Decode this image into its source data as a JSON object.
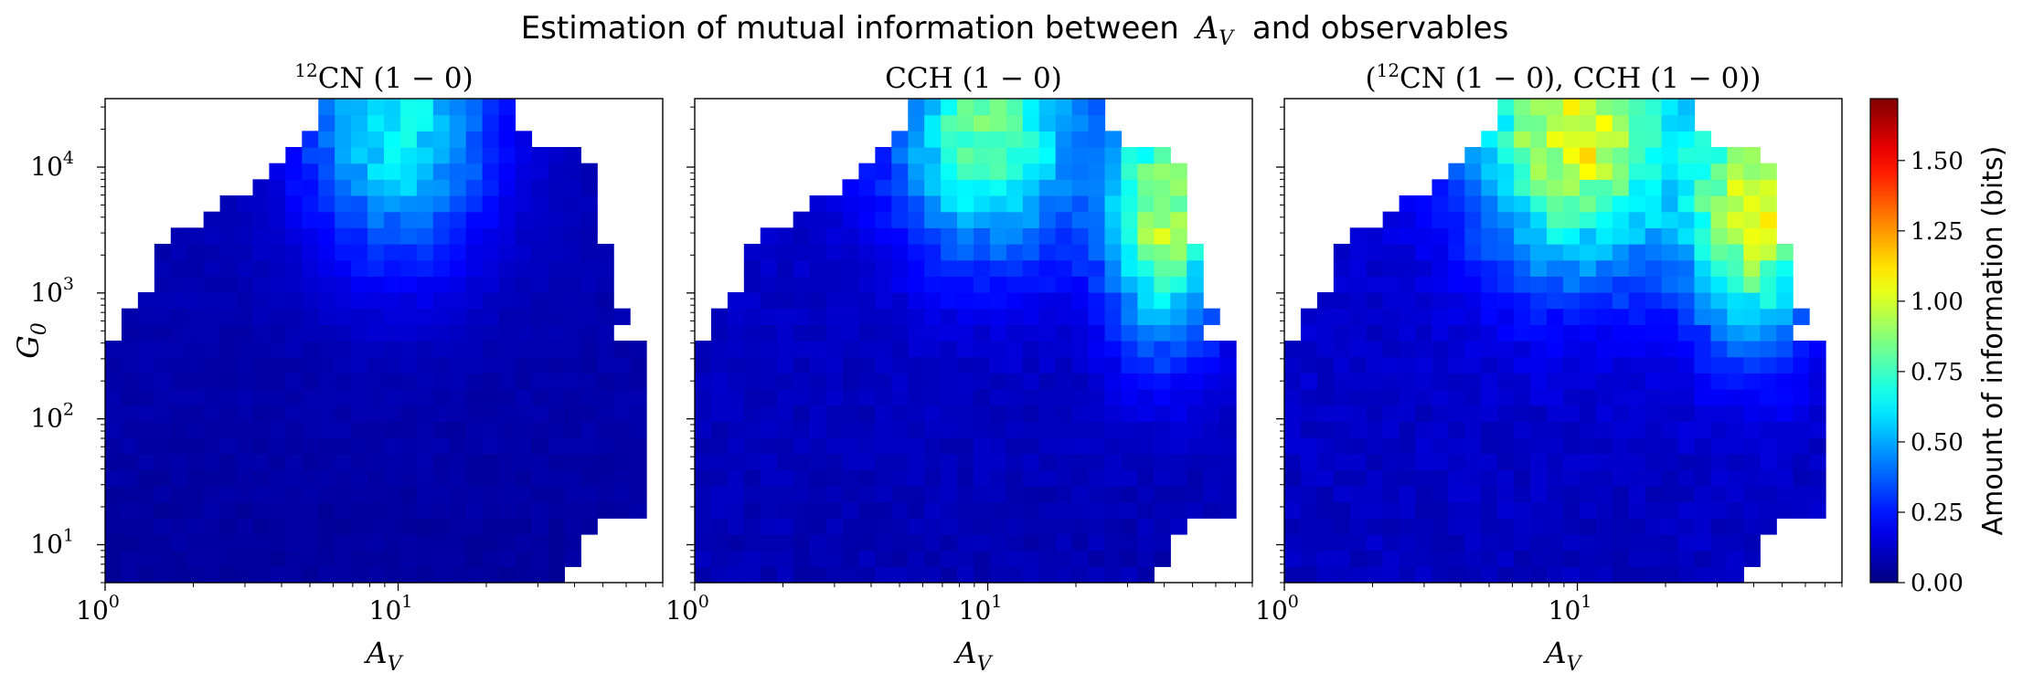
{
  "figure": {
    "suptitle_text": "Estimation of mutual information between",
    "suptitle_var": "A",
    "suptitle_var_sub": "V",
    "suptitle_suffix": "and observables"
  },
  "colorbar": {
    "label": "Amount of information (bits)",
    "colormap": "jet",
    "vmin": 0.0,
    "vmax": 1.72,
    "ticks": [
      "0.00",
      "0.25",
      "0.50",
      "0.75",
      "1.00",
      "1.25",
      "1.50"
    ],
    "tick_values": [
      0.0,
      0.25,
      0.5,
      0.75,
      1.0,
      1.25,
      1.5
    ]
  },
  "chart_data": [
    {
      "type": "heatmap",
      "title_sup": "12",
      "title_main": "CN (1 − 0)",
      "xlabel": "A",
      "xlabel_sub": "V",
      "ylabel": "G",
      "ylabel_sub": "0",
      "xscale": "log",
      "yscale": "log",
      "xlim": [
        1,
        80
      ],
      "ylim": [
        5,
        35000
      ],
      "xtick_labels": [
        "10",
        "10"
      ],
      "xtick_exponents": [
        "0",
        "1"
      ],
      "ytick_labels": [
        "10",
        "10",
        "10",
        "10"
      ],
      "ytick_exponents": [
        "1",
        "2",
        "3",
        "4"
      ],
      "peaks": [
        {
          "x": 10,
          "y": 23000,
          "value": 0.55,
          "sx": 0.22,
          "sy": 0.2
        }
      ],
      "background": 0.06
    },
    {
      "type": "heatmap",
      "title_main": "CCH (1 − 0)",
      "xlabel": "A",
      "xlabel_sub": "V",
      "xscale": "log",
      "yscale": "log",
      "xlim": [
        1,
        80
      ],
      "ylim": [
        5,
        35000
      ],
      "xtick_labels": [
        "10",
        "10"
      ],
      "xtick_exponents": [
        "0",
        "1"
      ],
      "peaks": [
        {
          "x": 10,
          "y": 20000,
          "value": 0.68,
          "sx": 0.22,
          "sy": 0.18
        },
        {
          "x": 40,
          "y": 4000,
          "value": 0.8,
          "sx": 0.14,
          "sy": 0.18
        }
      ],
      "background": 0.1
    },
    {
      "type": "heatmap",
      "title_sup": "12",
      "title_main": "(CN (1 − 0), CCH (1 − 0))",
      "xlabel": "A",
      "xlabel_sub": "V",
      "xscale": "log",
      "yscale": "log",
      "xlim": [
        1,
        80
      ],
      "ylim": [
        5,
        35000
      ],
      "xtick_labels": [
        "10",
        "10"
      ],
      "xtick_exponents": [
        "0",
        "1"
      ],
      "peaks": [
        {
          "x": 10,
          "y": 20000,
          "value": 0.9,
          "sx": 0.25,
          "sy": 0.2
        },
        {
          "x": 40,
          "y": 4000,
          "value": 0.85,
          "sx": 0.15,
          "sy": 0.18
        }
      ],
      "background": 0.12
    }
  ]
}
